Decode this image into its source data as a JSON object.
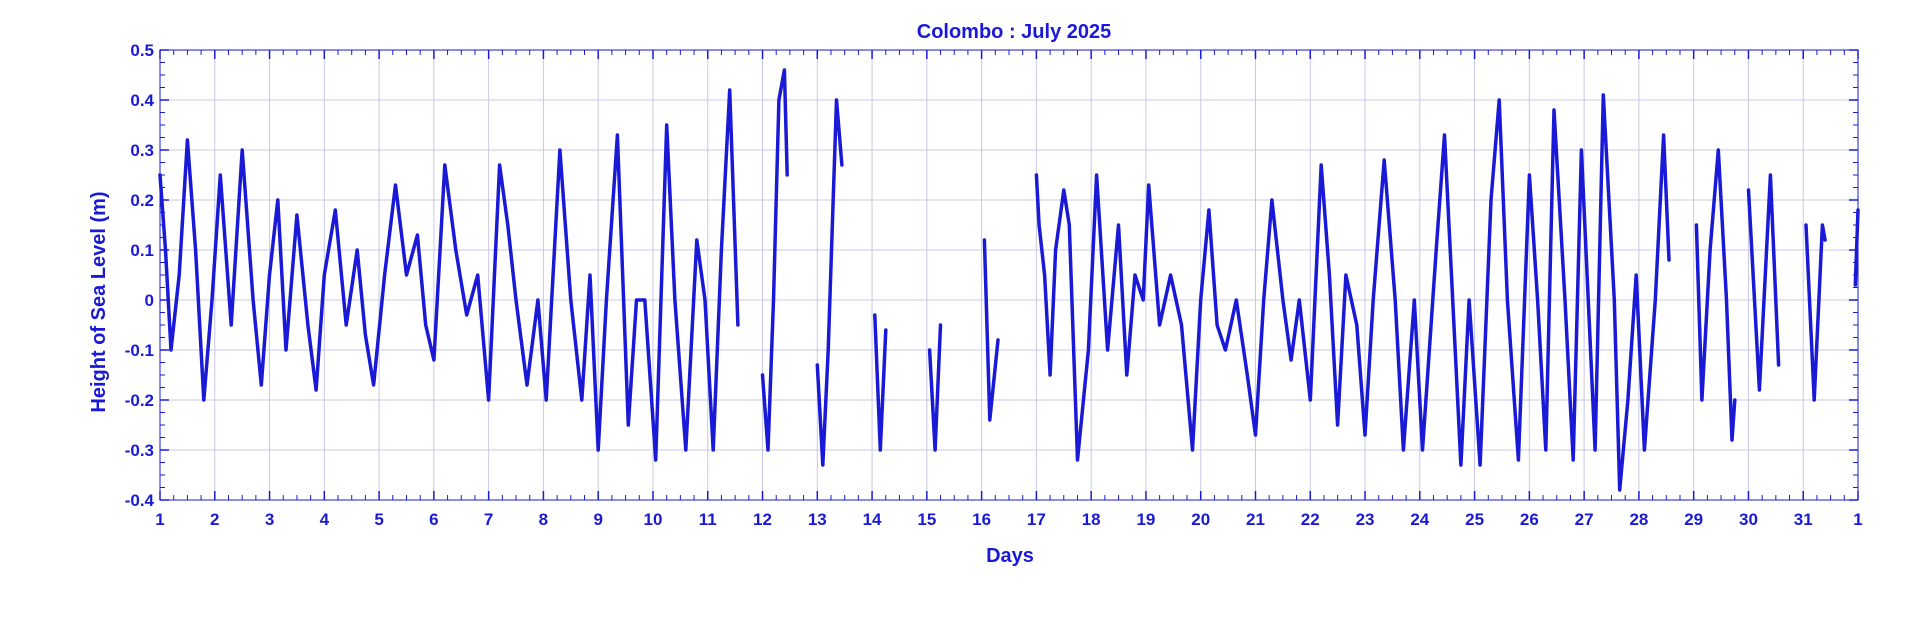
{
  "chart_data": {
    "type": "line",
    "title": "Colombo : July 2025",
    "xlabel": "Days",
    "ylabel": "Height of Sea Level (m)",
    "xlim": [
      1,
      32
    ],
    "ylim": [
      -0.4,
      0.5
    ],
    "x_tick_labels": [
      "1",
      "2",
      "3",
      "4",
      "5",
      "6",
      "7",
      "8",
      "9",
      "10",
      "11",
      "12",
      "13",
      "14",
      "15",
      "16",
      "17",
      "18",
      "19",
      "20",
      "21",
      "22",
      "23",
      "24",
      "25",
      "26",
      "27",
      "28",
      "29",
      "30",
      "31",
      "1"
    ],
    "y_tick_labels": [
      "0.5",
      "0.4",
      "0.3",
      "0.2",
      "0.1",
      "0",
      "-0.1",
      "-0.2",
      "-0.3",
      "-0.4"
    ],
    "y_ticks": [
      0.5,
      0.4,
      0.3,
      0.2,
      0.1,
      0,
      -0.1,
      -0.2,
      -0.3,
      -0.4
    ],
    "grid": true,
    "colors": {
      "series": "#1a1ad6",
      "text": "#1a1ad6",
      "grid": "#c8c8e6",
      "axes": "#1a1ad6"
    },
    "series": [
      {
        "segments": [
          {
            "x": [
              1.0,
              1.1,
              1.2,
              1.35,
              1.5,
              1.65,
              1.8,
              1.95,
              2.1,
              2.3,
              2.5,
              2.7,
              2.85,
              3.0,
              3.15,
              3.3,
              3.5,
              3.7,
              3.85,
              4.0,
              4.2,
              4.4,
              4.6,
              4.75,
              4.9,
              5.1,
              5.3,
              5.5,
              5.7,
              5.85,
              6.0,
              6.2,
              6.4,
              6.6,
              6.8,
              7.0,
              7.2,
              7.35,
              7.5,
              7.7,
              7.9,
              8.05,
              8.3,
              8.5,
              8.7,
              8.85,
              9.0,
              9.15,
              9.35,
              9.55,
              9.7,
              9.85,
              10.05,
              10.25,
              10.4,
              10.6,
              10.8,
              10.95,
              11.1,
              11.25,
              11.4,
              11.55
            ],
            "y": [
              0.25,
              0.1,
              -0.1,
              0.05,
              0.32,
              0.1,
              -0.2,
              0.0,
              0.25,
              -0.05,
              0.3,
              0.0,
              -0.17,
              0.05,
              0.2,
              -0.1,
              0.17,
              -0.05,
              -0.18,
              0.05,
              0.18,
              -0.05,
              0.1,
              -0.07,
              -0.17,
              0.05,
              0.23,
              0.05,
              0.13,
              -0.05,
              -0.12,
              0.27,
              0.1,
              -0.03,
              0.05,
              -0.2,
              0.27,
              0.15,
              0.0,
              -0.17,
              0.0,
              -0.2,
              0.3,
              0.0,
              -0.2,
              0.05,
              -0.3,
              0.0,
              0.33,
              -0.25,
              0.0,
              0.0,
              -0.32,
              0.35,
              0.0,
              -0.3,
              0.12,
              0.0,
              -0.3,
              0.1,
              0.42,
              -0.05
            ]
          },
          {
            "x": [
              12.0,
              12.1,
              12.2,
              12.3,
              12.4,
              12.45
            ],
            "y": [
              -0.15,
              -0.3,
              0.0,
              0.4,
              0.46,
              0.25
            ]
          },
          {
            "x": [
              13.0,
              13.1,
              13.2,
              13.35,
              13.45
            ],
            "y": [
              -0.13,
              -0.33,
              -0.1,
              0.4,
              0.27
            ]
          },
          {
            "x": [
              14.05,
              14.15,
              14.25
            ],
            "y": [
              -0.03,
              -0.3,
              -0.06
            ]
          },
          {
            "x": [
              15.05,
              15.15,
              15.25
            ],
            "y": [
              -0.1,
              -0.3,
              -0.05
            ]
          },
          {
            "x": [
              16.05,
              16.15,
              16.3
            ],
            "y": [
              0.12,
              -0.24,
              -0.08
            ]
          },
          {
            "x": [
              17.0,
              17.05,
              17.15,
              17.25,
              17.35,
              17.5,
              17.6,
              17.75,
              17.95,
              18.1,
              18.3,
              18.5,
              18.65,
              18.8,
              18.95,
              19.05,
              19.25,
              19.45,
              19.65,
              19.85,
              20.0,
              20.15,
              20.3,
              20.45,
              20.65,
              20.85,
              21.0,
              21.15,
              21.3,
              21.5,
              21.65,
              21.8,
              22.0,
              22.2,
              22.35,
              22.5,
              22.65,
              22.85,
              23.0,
              23.15,
              23.35,
              23.55,
              23.7,
              23.9,
              24.05,
              24.3,
              24.45,
              24.6,
              24.75,
              24.9,
              25.1,
              25.3,
              25.45,
              25.6,
              25.8,
              26.0,
              26.15,
              26.3,
              26.45,
              26.65,
              26.8,
              26.95,
              27.2,
              27.35,
              27.55,
              27.65,
              27.8,
              27.95,
              28.1,
              28.3,
              28.45,
              28.55
            ],
            "y": [
              0.25,
              0.15,
              0.05,
              -0.15,
              0.1,
              0.22,
              0.15,
              -0.32,
              -0.1,
              0.25,
              -0.1,
              0.15,
              -0.15,
              0.05,
              0.0,
              0.23,
              -0.05,
              0.05,
              -0.05,
              -0.3,
              0.0,
              0.18,
              -0.05,
              -0.1,
              0.0,
              -0.15,
              -0.27,
              0.0,
              0.2,
              0.0,
              -0.12,
              0.0,
              -0.2,
              0.27,
              0.05,
              -0.25,
              0.05,
              -0.05,
              -0.27,
              0.0,
              0.28,
              0.0,
              -0.3,
              0.0,
              -0.3,
              0.1,
              0.33,
              0.0,
              -0.33,
              0.0,
              -0.33,
              0.2,
              0.4,
              0.0,
              -0.32,
              0.25,
              0.0,
              -0.3,
              0.38,
              0.0,
              -0.32,
              0.3,
              -0.3,
              0.41,
              0.0,
              -0.38,
              -0.2,
              0.05,
              -0.3,
              0.0,
              0.33,
              0.08
            ]
          },
          {
            "x": [
              29.05,
              29.15,
              29.3,
              29.45,
              29.6,
              29.7,
              29.75
            ],
            "y": [
              0.15,
              -0.2,
              0.1,
              0.3,
              0.0,
              -0.28,
              -0.2
            ]
          },
          {
            "x": [
              30.0,
              30.2,
              30.4,
              30.55
            ],
            "y": [
              0.22,
              -0.18,
              0.25,
              -0.13
            ]
          },
          {
            "x": [
              31.05,
              31.2,
              31.35,
              31.4
            ],
            "y": [
              0.15,
              -0.2,
              0.15,
              0.12
            ]
          },
          {
            "x": [
              31.95,
              32.0
            ],
            "y": [
              0.03,
              0.18
            ]
          }
        ]
      }
    ]
  }
}
